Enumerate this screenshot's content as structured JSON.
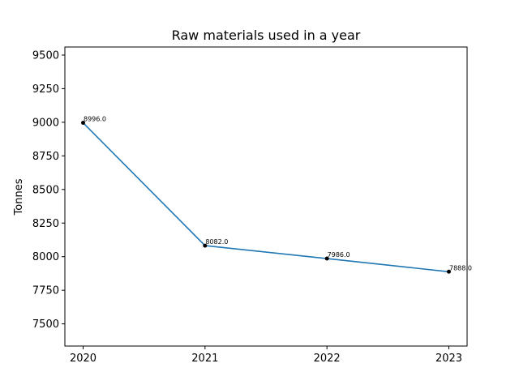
{
  "chart_data": {
    "type": "line",
    "title": "Raw materials used in a year",
    "xlabel": "",
    "ylabel": "Tonnes",
    "x": [
      "2020",
      "2021",
      "2022",
      "2023"
    ],
    "series": [
      {
        "values": [
          8996.0,
          8082.0,
          7986.0,
          7888.0
        ],
        "labels": [
          "8996.0",
          "8082.0",
          "7986.0",
          "7888.0"
        ],
        "color": "#1f77b4"
      }
    ],
    "ylim": [
      7335,
      9560
    ],
    "yticks": [
      7500,
      7750,
      8000,
      8250,
      8500,
      8750,
      9000,
      9250,
      9500
    ],
    "ytick_labels": [
      "7500",
      "7750",
      "8000",
      "8250",
      "8500",
      "8750",
      "9000",
      "9250",
      "9500"
    ],
    "grid": false,
    "marker_color": "#000000"
  }
}
